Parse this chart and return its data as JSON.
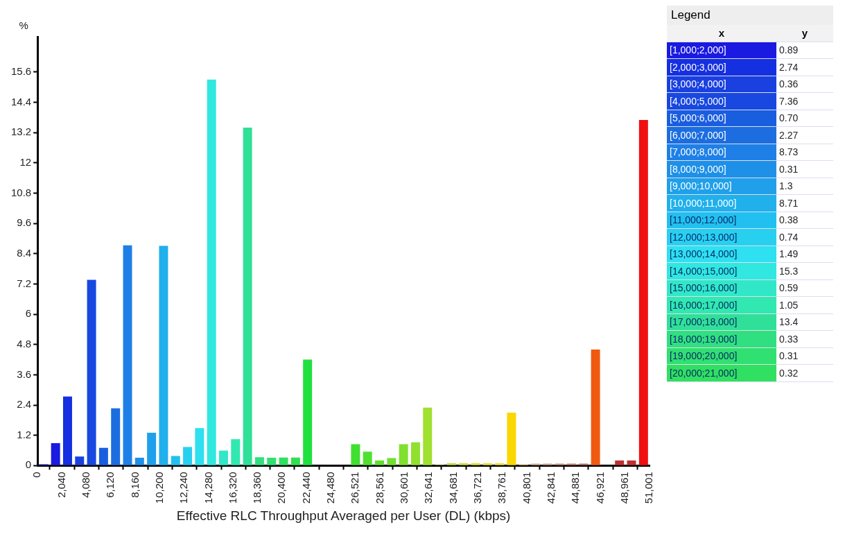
{
  "chart_data": [
    {
      "type": "histogram",
      "xlabel": "Effective RLC Throughput Averaged per User (DL) (kbps)",
      "ylabel": "%",
      "bins": [
        0,
        1000,
        2000,
        3000,
        4000,
        5000,
        6000,
        7000,
        8000,
        9000,
        10000,
        11000,
        12000,
        13000,
        14000,
        15000,
        16000,
        17000,
        18000,
        19000,
        20000,
        21000,
        22000,
        23000,
        24000,
        25000,
        26000,
        27000,
        28000,
        29000,
        30000,
        31000,
        32000,
        33000,
        34000,
        35000,
        36000,
        37000,
        38000,
        39000,
        40000,
        41000,
        42000,
        43000,
        44000,
        45000,
        46000,
        47000,
        48000,
        49000,
        50000,
        51000
      ],
      "values": [
        0.05,
        0.89,
        2.74,
        0.36,
        7.36,
        0.7,
        2.27,
        8.73,
        0.31,
        1.3,
        8.71,
        0.38,
        0.74,
        1.49,
        15.3,
        0.59,
        1.05,
        13.4,
        0.33,
        0.31,
        0.32,
        0.32,
        4.2,
        0,
        0,
        0,
        0.85,
        0.55,
        0.2,
        0.3,
        0.85,
        0.92,
        2.3,
        0.03,
        0.1,
        0.1,
        0.1,
        0.1,
        0.1,
        2.1,
        0.05,
        0.08,
        0.08,
        0.08,
        0.08,
        0.08,
        4.6,
        0,
        0.2,
        0.2,
        13.7
      ],
      "colors": [
        "#1010c0",
        "#1a1ae0",
        "#1530e0",
        "#1a40e0",
        "#1848e0",
        "#1a5ee0",
        "#1c6ee0",
        "#1e80e6",
        "#1e90e8",
        "#20a0ea",
        "#20b0ec",
        "#22c0f0",
        "#28d0f0",
        "#2ee0f0",
        "#30e8e0",
        "#30e8c8",
        "#30e8b0",
        "#30e098",
        "#30e080",
        "#30e070",
        "#30e060",
        "#30e050",
        "#20e040",
        "#20e040",
        "#30e030",
        "#30e030",
        "#40e030",
        "#50e030",
        "#60e030",
        "#70e030",
        "#80e030",
        "#90e030",
        "#a0e030",
        "#b0e040",
        "#c0e040",
        "#d0e040",
        "#e0e040",
        "#e8e040",
        "#f0e040",
        "#f8d800",
        "#e8c080",
        "#d8b090",
        "#d0a090",
        "#c89080",
        "#c08070",
        "#c07060",
        "#f05a10",
        "#e04010",
        "#c03030",
        "#c03030",
        "#f01010"
      ],
      "xlim": [
        0,
        51001
      ],
      "xticks": [
        0,
        {
          "value": 2040,
          "label": "2,040"
        },
        {
          "value": 4080,
          "label": "4,080"
        },
        {
          "value": 6120,
          "label": "6,120"
        },
        {
          "value": 8160,
          "label": "8,160"
        },
        {
          "value": 10200,
          "label": "10,200"
        },
        {
          "value": 12240,
          "label": "12,240"
        },
        {
          "value": 14280,
          "label": "14,280"
        },
        {
          "value": 16320,
          "label": "16,320"
        },
        {
          "value": 18360,
          "label": "18,360"
        },
        {
          "value": 20400,
          "label": "20,400"
        },
        {
          "value": 22440,
          "label": "22,440"
        },
        {
          "value": 24480,
          "label": "24,480"
        },
        {
          "value": 26521,
          "label": "26,521"
        },
        {
          "value": 28561,
          "label": "28,561"
        },
        {
          "value": 30601,
          "label": "30,601"
        },
        {
          "value": 32641,
          "label": "32,641"
        },
        {
          "value": 34681,
          "label": "34,681"
        },
        {
          "value": 36721,
          "label": "36,721"
        },
        {
          "value": 38761,
          "label": "38,761"
        },
        {
          "value": 40801,
          "label": "40,801"
        },
        {
          "value": 42841,
          "label": "42,841"
        },
        {
          "value": 44881,
          "label": "44,881"
        },
        {
          "value": 46921,
          "label": "46,921"
        },
        {
          "value": 48961,
          "label": "48,961"
        },
        {
          "value": 51001,
          "label": "51,001"
        }
      ],
      "ylim": [
        0,
        17
      ],
      "yticks": [
        0,
        1.2,
        2.4,
        3.6,
        4.8,
        6,
        7.2,
        8.4,
        9.6,
        10.8,
        12,
        13.2,
        14.4,
        15.6
      ],
      "grid": false
    },
    {
      "type": "other",
      "title": "Legend",
      "xlabel": "x",
      "ylabel": "y",
      "categories": [
        "[1,000;2,000]",
        "[2,000;3,000]",
        "[3,000;4,000]",
        "[4,000;5,000]",
        "[5,000;6,000]",
        "[6,000;7,000]",
        "[7,000;8,000]",
        "[8,000;9,000]",
        "[9,000;10,000]",
        "[10,000;11,000]",
        "[11,000;12,000]",
        "[12,000;13,000]",
        "[13,000;14,000]",
        "[14,000;15,000]",
        "[15,000;16,000]",
        "[16,000;17,000]",
        "[17,000;18,000]",
        "[18,000;19,000]",
        "[19,000;20,000]",
        "[20,000;21,000]"
      ],
      "value_labels": [
        "0.89",
        "2.74",
        "0.36",
        "7.36",
        "0.70",
        "2.27",
        "8.73",
        "0.31",
        "1.3",
        "8.71",
        "0.38",
        "0.74",
        "1.49",
        "15.3",
        "0.59",
        "1.05",
        "13.4",
        "0.33",
        "0.31",
        "0.32"
      ],
      "colors": [
        "#1a1ae0",
        "#1530e0",
        "#1a40e0",
        "#1848e0",
        "#1a5ee0",
        "#1c6ee0",
        "#1e80e6",
        "#1e90e8",
        "#20a0ea",
        "#20b0ec",
        "#22c0f0",
        "#28d0f0",
        "#2ee0f0",
        "#30e8e0",
        "#30e8c8",
        "#30e8b0",
        "#30e098",
        "#30e080",
        "#30e070",
        "#30e060"
      ]
    }
  ]
}
